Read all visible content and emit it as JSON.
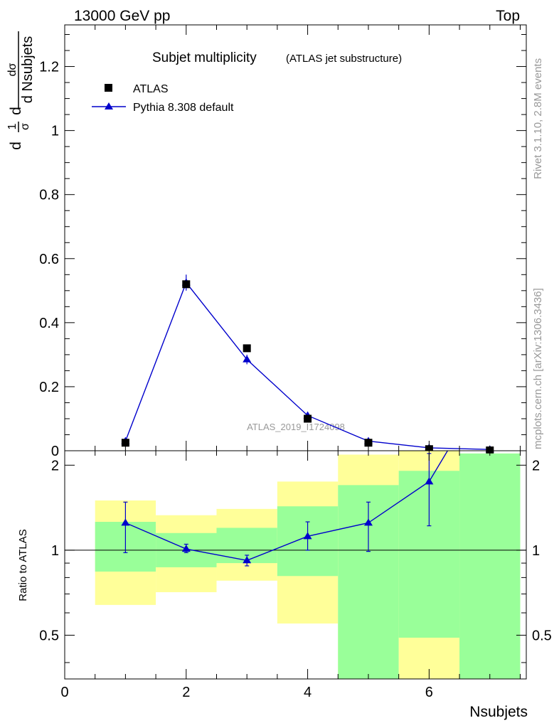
{
  "header": {
    "left": "13000 GeV pp",
    "right": "Top"
  },
  "side_labels": {
    "rivet": "Rivet 3.1.10,  2.8M events",
    "mcplots": "mcplots.cern.ch [arXiv:1306.3436]"
  },
  "watermark": "ATLAS_2019_I1724098",
  "colors": {
    "mc": "#0000cc",
    "data": "#000000",
    "band_inner": "#99ff99",
    "band_outer": "#ffff99"
  },
  "chart_data": [
    {
      "type": "scatter",
      "title": "Subjet multiplicity",
      "subtitle": "(ATLAS jet substructure)",
      "ylabel_num": "dσ",
      "ylabel_den": "d Nsubjets",
      "ylabel_pre_num": "1",
      "ylabel_pre_den": "σ",
      "ylabel_d": "d",
      "xlim": [
        0,
        7.6
      ],
      "ylim": [
        0,
        1.33
      ],
      "yticks": [
        "0",
        "0.2",
        "0.4",
        "0.6",
        "0.8",
        "1",
        "1.2"
      ],
      "ytick_values": [
        0,
        0.2,
        0.4,
        0.6,
        0.8,
        1.0,
        1.2
      ],
      "legend_position": "top-left",
      "series": [
        {
          "name": "ATLAS",
          "marker": "square",
          "x": [
            1,
            2,
            3,
            4,
            5,
            6,
            7
          ],
          "y": [
            0.025,
            0.52,
            0.32,
            0.1,
            0.025,
            0.005,
            0.001
          ]
        },
        {
          "name": "Pythia 8.308 default",
          "marker": "triangle",
          "x": [
            1,
            2,
            3,
            4,
            5,
            6,
            7
          ],
          "y": [
            0.03,
            0.525,
            0.285,
            0.11,
            0.03,
            0.009,
            0.004
          ],
          "yerr": [
            0.003,
            0.025,
            0.015,
            0.008,
            0.003,
            0.002,
            0.002
          ]
        }
      ]
    },
    {
      "type": "line",
      "ylabel": "Ratio to ATLAS",
      "xlabel": "Nsubjets",
      "xlim": [
        0,
        7.6
      ],
      "ylim": [
        0.35,
        2.25
      ],
      "xticks": [
        "0",
        "2",
        "4",
        "6"
      ],
      "xtick_values": [
        0,
        2,
        4,
        6
      ],
      "yticks": [
        "0.5",
        "1",
        "2"
      ],
      "ytick_values": [
        0.5,
        1,
        2
      ],
      "reference_line": 1,
      "bands": [
        {
          "xlo": 0.5,
          "xhi": 1.5,
          "inner": [
            0.84,
            1.26
          ],
          "outer": [
            0.64,
            1.5
          ]
        },
        {
          "xlo": 1.5,
          "xhi": 2.5,
          "inner": [
            0.87,
            1.15
          ],
          "outer": [
            0.71,
            1.33
          ]
        },
        {
          "xlo": 2.5,
          "xhi": 3.5,
          "inner": [
            0.9,
            1.2
          ],
          "outer": [
            0.78,
            1.4
          ]
        },
        {
          "xlo": 3.5,
          "xhi": 4.5,
          "inner": [
            0.81,
            1.43
          ],
          "outer": [
            0.55,
            1.75
          ]
        },
        {
          "xlo": 4.5,
          "xhi": 5.5,
          "inner": [
            0.35,
            1.7
          ],
          "outer": [
            0.35,
            2.18
          ]
        },
        {
          "xlo": 5.5,
          "xhi": 6.5,
          "inner": [
            0.49,
            1.91
          ],
          "outer": [
            0.35,
            2.25
          ]
        },
        {
          "xlo": 6.5,
          "xhi": 7.5,
          "inner": [
            0.35,
            2.2
          ],
          "outer": [
            0.35,
            2.2
          ]
        }
      ],
      "series": [
        {
          "name": "Pythia 8.308 default",
          "x": [
            1,
            2,
            3,
            4,
            5,
            6,
            7
          ],
          "y": [
            1.25,
            1.01,
            0.92,
            1.12,
            1.25,
            1.75,
            4.0
          ],
          "ylo": [
            0.98,
            0.98,
            0.88,
            1.0,
            0.99,
            1.22,
            4.0
          ],
          "yhi": [
            1.48,
            1.05,
            0.96,
            1.26,
            1.48,
            2.2,
            4.0
          ]
        }
      ]
    }
  ]
}
